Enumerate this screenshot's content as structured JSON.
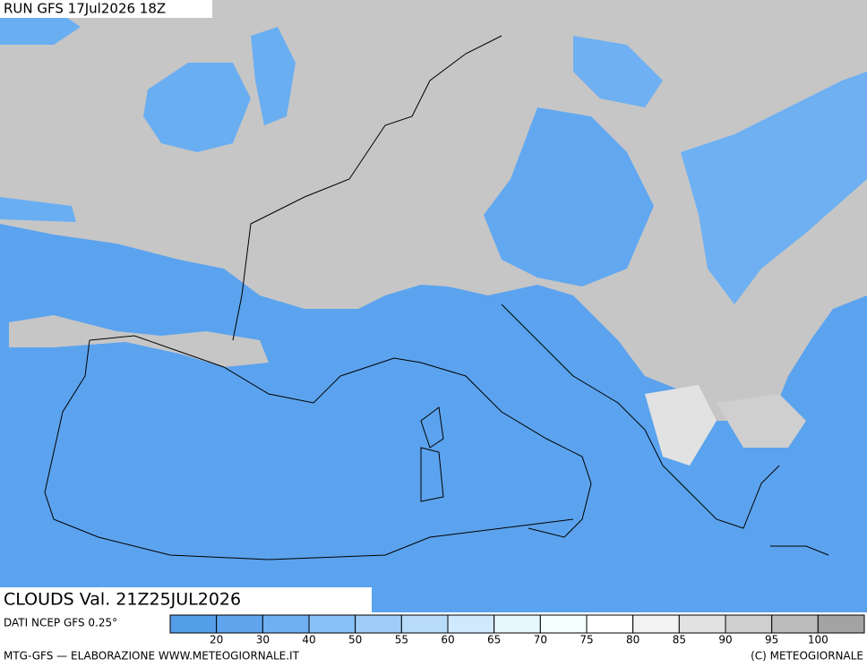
{
  "header": {
    "run": "RUN GFS 17Jul2026 18Z"
  },
  "title": "CLOUDS Val. 21Z25JUL2026",
  "source": "DATI NCEP GFS 0.25°",
  "footer": {
    "left": "MTG-GFS — ELABORAZIONE WWW.METEOGIORNALE.IT",
    "right": "(C) METEOGIORNALE"
  },
  "legend": {
    "labels": [
      20,
      30,
      40,
      50,
      55,
      60,
      65,
      70,
      75,
      80,
      85,
      90,
      95,
      100
    ],
    "colors": [
      "#559ee8",
      "#5fa6ee",
      "#6eb0f2",
      "#86c0f5",
      "#9ecdf7",
      "#b8dbfa",
      "#d0e9fc",
      "#e6f7fd",
      "#f2fffe",
      "#ffffff",
      "#f3f3f3",
      "#e2e2e2",
      "#cfcfcf",
      "#bcbcbc",
      "#a3a3a3"
    ]
  }
}
